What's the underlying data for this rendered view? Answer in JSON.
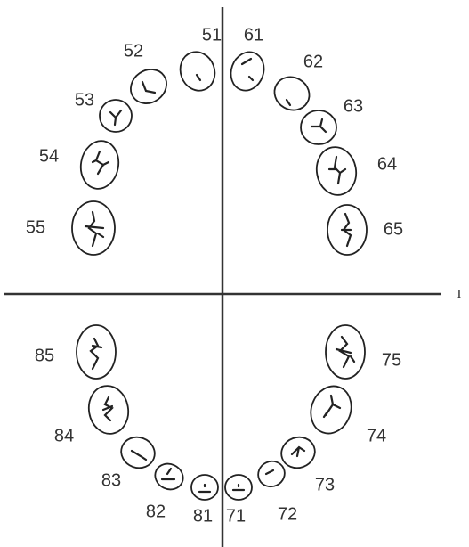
{
  "quadrants": [
    {
      "labels": [
        "51",
        "52",
        "53",
        "54",
        "55"
      ]
    },
    {
      "labels": [
        "61",
        "62",
        "63",
        "64",
        "65"
      ]
    },
    {
      "labels": [
        "71",
        "72",
        "73",
        "74",
        "75"
      ]
    },
    {
      "labels": [
        "81",
        "82",
        "83",
        "84",
        "85"
      ]
    }
  ],
  "side_label": "I"
}
